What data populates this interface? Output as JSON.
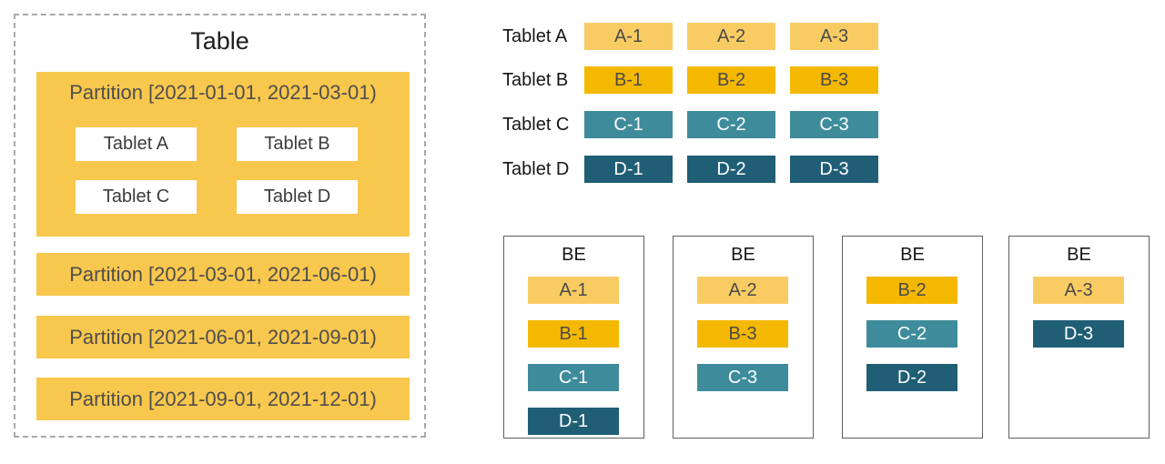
{
  "colors": {
    "partition": "#F8C74D",
    "replica_a": "#F9CC63",
    "replica_b": "#F5B800",
    "replica_c": "#3E8C9B",
    "replica_d": "#205E76",
    "partition_text": "#4E4E4E",
    "chip_dark_text": "#4A4A4A",
    "chip_light_text": "#FFFFFF",
    "dash_border": "#A9A9A9",
    "be_border": "#5E5E5E"
  },
  "table_panel": {
    "title": "Table",
    "partitions": [
      {
        "label": "Partition [2021-01-01, 2021-03-01)",
        "tablets": [
          "Tablet A",
          "Tablet B",
          "Tablet C",
          "Tablet D"
        ]
      },
      {
        "label": "Partition [2021-03-01, 2021-06-01)"
      },
      {
        "label": "Partition [2021-06-01, 2021-09-01)"
      },
      {
        "label": "Partition [2021-09-01, 2021-12-01)"
      }
    ]
  },
  "tablet_rows": [
    {
      "label": "Tablet A",
      "replicas": [
        "A-1",
        "A-2",
        "A-3"
      ]
    },
    {
      "label": "Tablet B",
      "replicas": [
        "B-1",
        "B-2",
        "B-3"
      ]
    },
    {
      "label": "Tablet C",
      "replicas": [
        "C-1",
        "C-2",
        "C-3"
      ]
    },
    {
      "label": "Tablet D",
      "replicas": [
        "D-1",
        "D-2",
        "D-3"
      ]
    }
  ],
  "be_nodes": [
    {
      "label": "BE",
      "replicas": [
        "A-1",
        "B-1",
        "C-1",
        "D-1"
      ]
    },
    {
      "label": "BE",
      "replicas": [
        "A-2",
        "B-3",
        "C-3"
      ]
    },
    {
      "label": "BE",
      "replicas": [
        "B-2",
        "C-2",
        "D-2"
      ]
    },
    {
      "label": "BE",
      "replicas": [
        "A-3",
        "D-3"
      ]
    }
  ]
}
